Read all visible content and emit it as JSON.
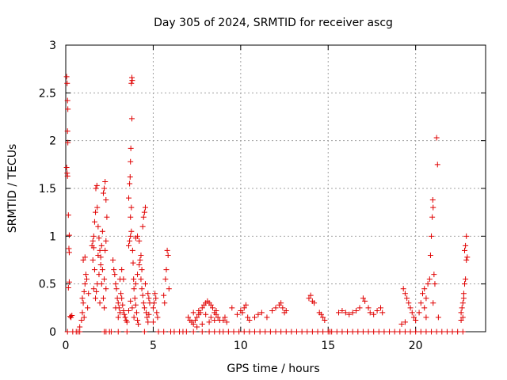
{
  "chart_data": {
    "type": "scatter",
    "title": "Day 305 of 2024, SRMTID for receiver ascg",
    "xlabel": "GPS time / hours",
    "ylabel": "SRMTID / TECUs",
    "xlim": [
      0,
      24
    ],
    "ylim": [
      0,
      3
    ],
    "x_ticks": [
      0,
      5,
      10,
      15,
      20
    ],
    "x_tick_labels": [
      "0",
      "5",
      "10",
      "15",
      "20"
    ],
    "y_ticks": [
      0,
      0.5,
      1,
      1.5,
      2,
      2.5,
      3
    ],
    "y_tick_labels": [
      "0",
      "0.5",
      "1",
      "1.5",
      "2",
      "2.5",
      "3"
    ],
    "grid": true,
    "marker": "+",
    "color": "#e00000",
    "series": [
      {
        "name": "SRMTID",
        "points": [
          [
            0.05,
            2.67
          ],
          [
            0.08,
            2.6
          ],
          [
            0.1,
            2.42
          ],
          [
            0.12,
            2.33
          ],
          [
            0.1,
            2.1
          ],
          [
            0.12,
            1.98
          ],
          [
            0.05,
            1.72
          ],
          [
            0.08,
            1.66
          ],
          [
            0.1,
            1.63
          ],
          [
            0.15,
            1.22
          ],
          [
            0.2,
            1.01
          ],
          [
            0.18,
            0.87
          ],
          [
            0.2,
            0.83
          ],
          [
            0.2,
            0.52
          ],
          [
            0.15,
            0.46
          ],
          [
            0.25,
            0.16
          ],
          [
            0.3,
            0.15
          ],
          [
            0.35,
            0.17
          ],
          [
            0.8,
            0.05
          ],
          [
            0.9,
            0.12
          ],
          [
            0.95,
            0.2
          ],
          [
            1.0,
            0.3
          ],
          [
            1.05,
            0.42
          ],
          [
            1.1,
            0.5
          ],
          [
            1.15,
            0.6
          ],
          [
            1.0,
            0.75
          ],
          [
            1.1,
            0.78
          ],
          [
            1.2,
            0.55
          ],
          [
            1.3,
            0.4
          ],
          [
            1.25,
            0.25
          ],
          [
            0.95,
            0.35
          ],
          [
            1.05,
            0.15
          ],
          [
            1.5,
            0.9
          ],
          [
            1.55,
            0.95
          ],
          [
            1.6,
            1.0
          ],
          [
            1.65,
            1.15
          ],
          [
            1.7,
            1.25
          ],
          [
            1.72,
            1.5
          ],
          [
            1.78,
            1.53
          ],
          [
            1.8,
            1.3
          ],
          [
            1.85,
            1.1
          ],
          [
            1.9,
            0.98
          ],
          [
            1.95,
            0.85
          ],
          [
            2.0,
            0.78
          ],
          [
            2.05,
            0.9
          ],
          [
            2.1,
            1.05
          ],
          [
            2.15,
            1.45
          ],
          [
            2.2,
            1.5
          ],
          [
            2.25,
            1.57
          ],
          [
            2.3,
            1.38
          ],
          [
            2.35,
            1.2
          ],
          [
            2.0,
            0.7
          ],
          [
            1.9,
            0.6
          ],
          [
            1.8,
            0.5
          ],
          [
            1.6,
            0.45
          ],
          [
            1.7,
            0.35
          ],
          [
            1.65,
            0.65
          ],
          [
            1.55,
            0.75
          ],
          [
            2.1,
            0.65
          ],
          [
            2.2,
            0.55
          ],
          [
            2.3,
            0.45
          ],
          [
            2.15,
            0.35
          ],
          [
            2.2,
            0.25
          ],
          [
            1.95,
            0.3
          ],
          [
            1.75,
            0.42
          ],
          [
            2.05,
            0.5
          ],
          [
            2.25,
            0.85
          ],
          [
            2.3,
            0.95
          ],
          [
            1.85,
            0.8
          ],
          [
            1.6,
            0.88
          ],
          [
            2.7,
            0.75
          ],
          [
            2.8,
            0.6
          ],
          [
            2.85,
            0.5
          ],
          [
            2.9,
            0.45
          ],
          [
            2.95,
            0.35
          ],
          [
            3.0,
            0.3
          ],
          [
            3.05,
            0.25
          ],
          [
            3.1,
            0.2
          ],
          [
            3.15,
            0.4
          ],
          [
            3.2,
            0.35
          ],
          [
            3.25,
            0.28
          ],
          [
            3.3,
            0.22
          ],
          [
            3.35,
            0.18
          ],
          [
            3.4,
            0.15
          ],
          [
            3.45,
            0.12
          ],
          [
            3.5,
            0.1
          ],
          [
            3.1,
            0.55
          ],
          [
            3.2,
            0.65
          ],
          [
            3.3,
            0.55
          ],
          [
            2.75,
            0.65
          ],
          [
            2.85,
            0.25
          ],
          [
            3.0,
            0.15
          ],
          [
            3.6,
            0.9
          ],
          [
            3.65,
            0.95
          ],
          [
            3.7,
            1.0
          ],
          [
            3.75,
            1.05
          ],
          [
            3.7,
            1.2
          ],
          [
            3.75,
            1.3
          ],
          [
            3.6,
            1.4
          ],
          [
            3.65,
            1.55
          ],
          [
            3.68,
            1.62
          ],
          [
            3.7,
            1.78
          ],
          [
            3.72,
            1.92
          ],
          [
            3.78,
            2.23
          ],
          [
            3.75,
            2.6
          ],
          [
            3.8,
            2.63
          ],
          [
            3.78,
            2.66
          ],
          [
            3.82,
            0.85
          ],
          [
            3.85,
            0.72
          ],
          [
            3.88,
            0.55
          ],
          [
            3.9,
            0.45
          ],
          [
            3.95,
            0.35
          ],
          [
            4.0,
            0.28
          ],
          [
            4.05,
            0.2
          ],
          [
            4.1,
            0.12
          ],
          [
            4.15,
            0.08
          ],
          [
            3.9,
            0.15
          ],
          [
            3.8,
            0.25
          ],
          [
            3.7,
            0.32
          ],
          [
            3.6,
            0.22
          ],
          [
            4.0,
            0.5
          ],
          [
            4.1,
            0.6
          ],
          [
            4.2,
            0.7
          ],
          [
            4.25,
            0.75
          ],
          [
            4.3,
            0.55
          ],
          [
            4.35,
            0.45
          ],
          [
            4.4,
            0.38
          ],
          [
            4.45,
            0.3
          ],
          [
            4.5,
            0.25
          ],
          [
            4.0,
            0.98
          ],
          [
            4.1,
            1.0
          ],
          [
            4.2,
            0.95
          ],
          [
            4.3,
            0.8
          ],
          [
            4.35,
            0.65
          ],
          [
            4.4,
            1.1
          ],
          [
            4.45,
            1.2
          ],
          [
            4.5,
            1.25
          ],
          [
            4.55,
            1.3
          ],
          [
            4.6,
            0.2
          ],
          [
            4.65,
            0.15
          ],
          [
            4.7,
            0.1
          ],
          [
            4.75,
            0.18
          ],
          [
            4.8,
            0.3
          ],
          [
            4.55,
            0.5
          ],
          [
            4.7,
            0.4
          ],
          [
            4.75,
            0.35
          ],
          [
            5.0,
            0.25
          ],
          [
            5.05,
            0.3
          ],
          [
            5.1,
            0.4
          ],
          [
            5.15,
            0.35
          ],
          [
            5.2,
            0.2
          ],
          [
            5.25,
            0.15
          ],
          [
            5.0,
            0.1
          ],
          [
            5.8,
            0.85
          ],
          [
            5.85,
            0.8
          ],
          [
            5.75,
            0.65
          ],
          [
            5.7,
            0.55
          ],
          [
            5.9,
            0.45
          ],
          [
            5.6,
            0.38
          ],
          [
            5.65,
            0.3
          ],
          [
            7.0,
            0.15
          ],
          [
            7.1,
            0.12
          ],
          [
            7.2,
            0.1
          ],
          [
            7.3,
            0.08
          ],
          [
            7.4,
            0.12
          ],
          [
            7.5,
            0.15
          ],
          [
            7.6,
            0.18
          ],
          [
            7.7,
            0.2
          ],
          [
            7.8,
            0.25
          ],
          [
            7.9,
            0.28
          ],
          [
            8.0,
            0.3
          ],
          [
            8.1,
            0.32
          ],
          [
            8.2,
            0.3
          ],
          [
            8.3,
            0.28
          ],
          [
            8.4,
            0.25
          ],
          [
            8.5,
            0.2
          ],
          [
            8.6,
            0.18
          ],
          [
            8.7,
            0.15
          ],
          [
            8.8,
            0.12
          ],
          [
            7.5,
            0.05
          ],
          [
            7.8,
            0.08
          ],
          [
            8.2,
            0.1
          ],
          [
            8.5,
            0.12
          ],
          [
            7.3,
            0.2
          ],
          [
            7.6,
            0.22
          ],
          [
            8.0,
            0.18
          ],
          [
            8.3,
            0.15
          ],
          [
            8.6,
            0.22
          ],
          [
            9.0,
            0.12
          ],
          [
            9.1,
            0.15
          ],
          [
            9.2,
            0.1
          ],
          [
            9.5,
            0.25
          ],
          [
            9.8,
            0.18
          ],
          [
            10.0,
            0.22
          ],
          [
            10.1,
            0.2
          ],
          [
            10.2,
            0.25
          ],
          [
            10.3,
            0.28
          ],
          [
            10.4,
            0.15
          ],
          [
            10.5,
            0.12
          ],
          [
            10.8,
            0.15
          ],
          [
            11.0,
            0.18
          ],
          [
            11.2,
            0.2
          ],
          [
            11.5,
            0.15
          ],
          [
            11.8,
            0.22
          ],
          [
            12.0,
            0.25
          ],
          [
            12.2,
            0.28
          ],
          [
            12.3,
            0.3
          ],
          [
            12.4,
            0.25
          ],
          [
            12.5,
            0.2
          ],
          [
            12.6,
            0.22
          ],
          [
            13.9,
            0.35
          ],
          [
            14.0,
            0.38
          ],
          [
            14.1,
            0.32
          ],
          [
            14.2,
            0.3
          ],
          [
            14.5,
            0.2
          ],
          [
            14.6,
            0.18
          ],
          [
            14.7,
            0.15
          ],
          [
            14.8,
            0.12
          ],
          [
            15.6,
            0.2
          ],
          [
            15.8,
            0.22
          ],
          [
            16.0,
            0.2
          ],
          [
            16.2,
            0.18
          ],
          [
            16.4,
            0.2
          ],
          [
            16.6,
            0.22
          ],
          [
            16.8,
            0.25
          ],
          [
            17.0,
            0.35
          ],
          [
            17.1,
            0.32
          ],
          [
            17.3,
            0.25
          ],
          [
            17.4,
            0.2
          ],
          [
            17.6,
            0.18
          ],
          [
            17.8,
            0.22
          ],
          [
            18.0,
            0.25
          ],
          [
            18.1,
            0.2
          ],
          [
            19.3,
            0.45
          ],
          [
            19.4,
            0.4
          ],
          [
            19.5,
            0.35
          ],
          [
            19.6,
            0.3
          ],
          [
            19.7,
            0.25
          ],
          [
            19.8,
            0.2
          ],
          [
            19.9,
            0.15
          ],
          [
            20.0,
            0.12
          ],
          [
            19.4,
            0.1
          ],
          [
            19.2,
            0.08
          ],
          [
            20.2,
            0.2
          ],
          [
            20.3,
            0.3
          ],
          [
            20.4,
            0.4
          ],
          [
            20.5,
            0.45
          ],
          [
            20.6,
            0.35
          ],
          [
            20.7,
            0.5
          ],
          [
            20.8,
            0.55
          ],
          [
            20.85,
            0.8
          ],
          [
            20.9,
            1.0
          ],
          [
            20.95,
            1.2
          ],
          [
            21.0,
            1.3
          ],
          [
            20.98,
            1.38
          ],
          [
            21.05,
            0.6
          ],
          [
            21.1,
            0.5
          ],
          [
            21.0,
            0.3
          ],
          [
            21.2,
            2.03
          ],
          [
            21.25,
            1.75
          ],
          [
            21.3,
            0.15
          ],
          [
            20.5,
            0.25
          ],
          [
            20.6,
            0.15
          ],
          [
            22.6,
            0.2
          ],
          [
            22.65,
            0.25
          ],
          [
            22.7,
            0.3
          ],
          [
            22.75,
            0.4
          ],
          [
            22.8,
            0.5
          ],
          [
            22.85,
            0.55
          ],
          [
            22.6,
            0.12
          ],
          [
            22.7,
            0.15
          ],
          [
            22.8,
            0.85
          ],
          [
            22.85,
            0.9
          ],
          [
            22.9,
            1.0
          ],
          [
            22.95,
            0.78
          ],
          [
            22.9,
            0.75
          ],
          [
            22.75,
            0.35
          ]
        ]
      }
    ],
    "zero_markers_x": [
      0.1,
      0.4,
      0.6,
      0.7,
      0.8,
      2.2,
      2.3,
      2.5,
      2.6,
      3.0,
      3.5,
      4.5,
      5.3,
      5.6,
      6.0,
      6.2,
      6.5,
      6.7,
      6.9,
      7.3,
      7.8,
      8.2,
      8.5,
      8.8,
      9.0,
      9.3,
      9.6,
      9.9,
      10.2,
      10.5,
      10.8,
      11.1,
      11.4,
      11.7,
      12.0,
      12.3,
      12.6,
      12.9,
      13.2,
      13.5,
      13.8,
      14.1,
      14.4,
      14.7,
      15.0,
      15.1,
      15.2,
      15.5,
      15.8,
      16.1,
      16.4,
      16.7,
      17.0,
      17.3,
      17.6,
      17.9,
      18.2,
      18.5,
      18.8,
      19.1,
      19.4,
      19.7,
      20.0,
      20.3,
      20.6,
      20.9,
      21.2,
      21.5,
      21.8,
      22.1,
      22.4,
      22.7
    ]
  }
}
